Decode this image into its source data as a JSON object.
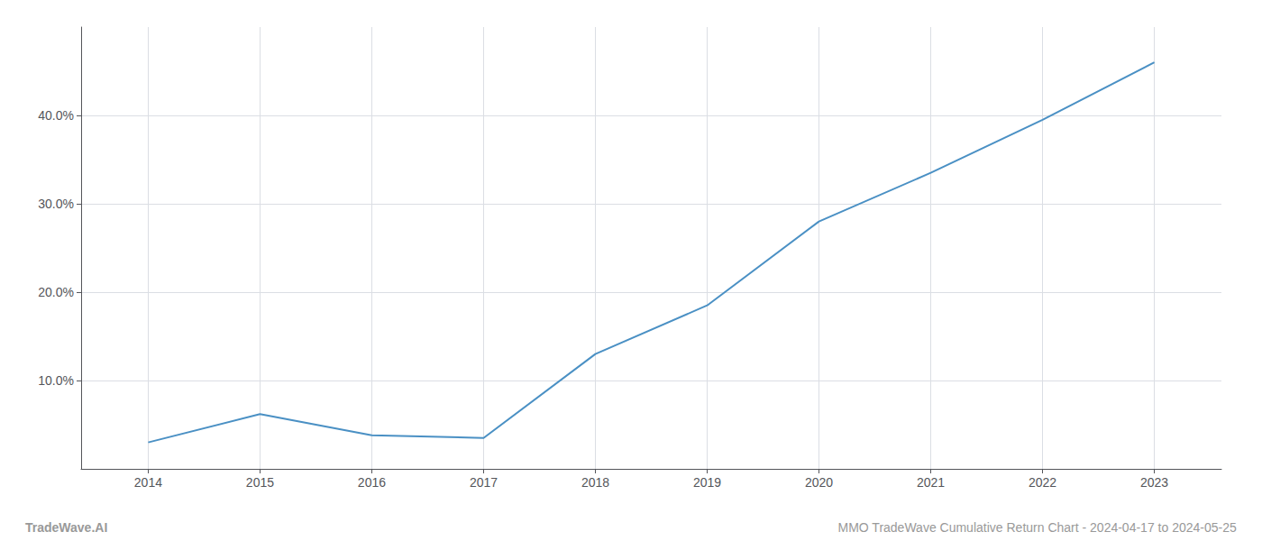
{
  "chart_data": {
    "type": "line",
    "x": [
      2014,
      2015,
      2016,
      2017,
      2018,
      2019,
      2020,
      2021,
      2022,
      2023
    ],
    "values": [
      3.0,
      6.2,
      3.8,
      3.5,
      13.0,
      18.5,
      28.0,
      33.5,
      39.5,
      46.0
    ],
    "color": "#4a90c4",
    "xlim": [
      2013.4,
      2023.6
    ],
    "xticks": [
      2014,
      2015,
      2016,
      2017,
      2018,
      2019,
      2020,
      2021,
      2022,
      2023
    ],
    "ylim": [
      0,
      50
    ],
    "yticks": [
      {
        "value": 10,
        "label": "10.0%"
      },
      {
        "value": 20,
        "label": "20.0%"
      },
      {
        "value": 30,
        "label": "30.0%"
      },
      {
        "value": 40,
        "label": "40.0%"
      }
    ],
    "grid": true,
    "annotations": [
      "TradeWave.AI",
      "MMO TradeWave Cumulative Return Chart - 2024-04-17 to 2024-05-25"
    ]
  }
}
